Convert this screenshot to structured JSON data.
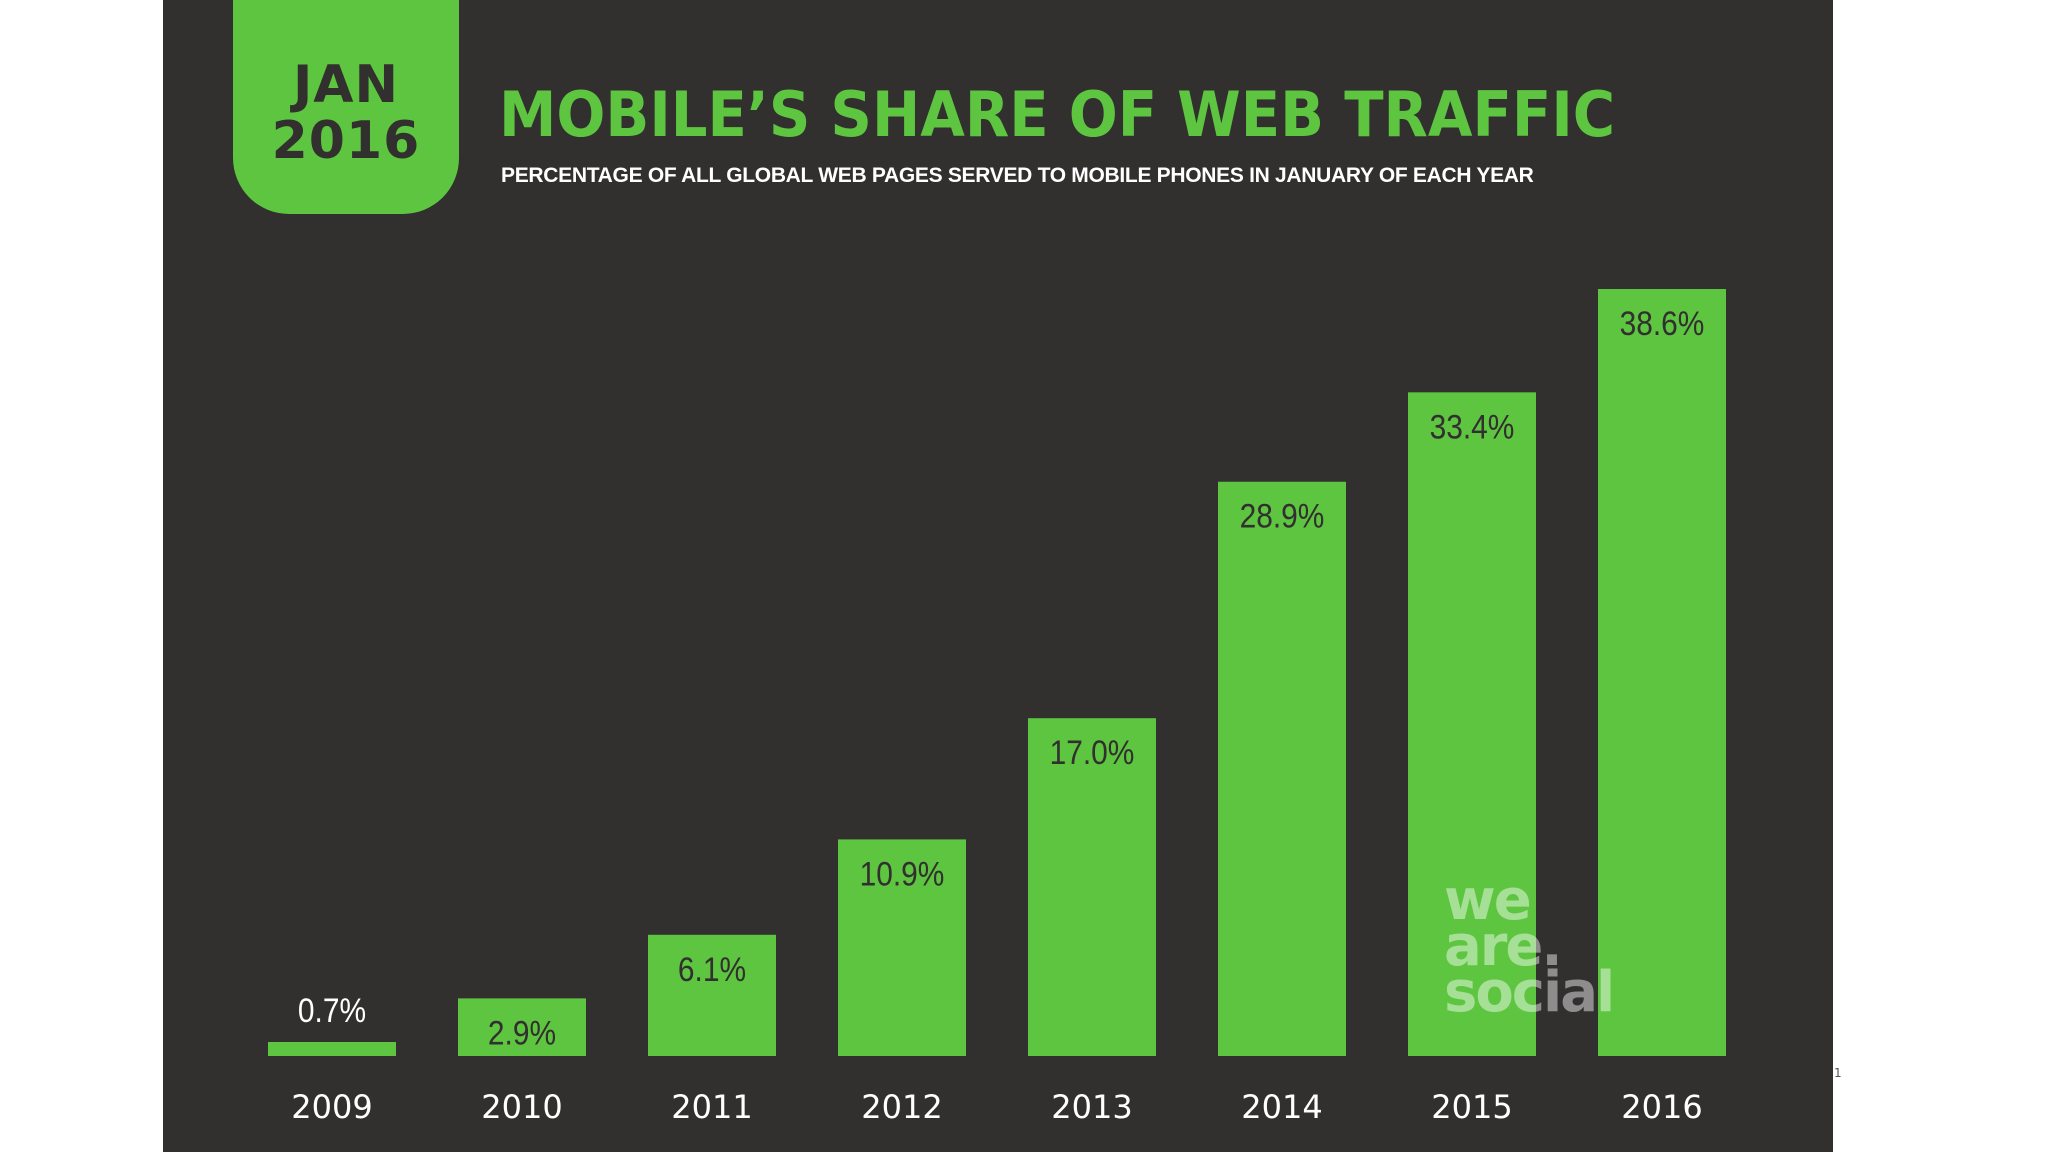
{
  "badge": {
    "month": "JAN",
    "year": "2016"
  },
  "header": {
    "title": "MOBILE’S SHARE OF WEB TRAFFIC",
    "subtitle": "PERCENTAGE OF ALL GLOBAL WEB PAGES SERVED TO MOBILE PHONES IN JANUARY OF EACH YEAR"
  },
  "watermark": [
    "we",
    "are.",
    "social"
  ],
  "page_marker": "1",
  "colors": {
    "background": "#322f2f",
    "accent": "#5ec540",
    "page": "#ffffff"
  },
  "chart_data": {
    "type": "bar",
    "title": "MOBILE’S SHARE OF WEB TRAFFIC",
    "subtitle": "PERCENTAGE OF ALL GLOBAL WEB PAGES SERVED TO MOBILE PHONES IN JANUARY OF EACH YEAR",
    "categories": [
      "2009",
      "2010",
      "2011",
      "2012",
      "2013",
      "2014",
      "2015",
      "2016"
    ],
    "values": [
      0.7,
      2.9,
      6.1,
      10.9,
      17.0,
      28.9,
      33.4,
      38.6
    ],
    "data_labels": [
      "0.7%",
      "2.9%",
      "6.1%",
      "10.9%",
      "17.0%",
      "28.9%",
      "33.4%",
      "38.6%"
    ],
    "xlabel": "",
    "ylabel": "",
    "ylim": [
      0,
      38.6
    ],
    "grid": false,
    "legend": "none"
  }
}
